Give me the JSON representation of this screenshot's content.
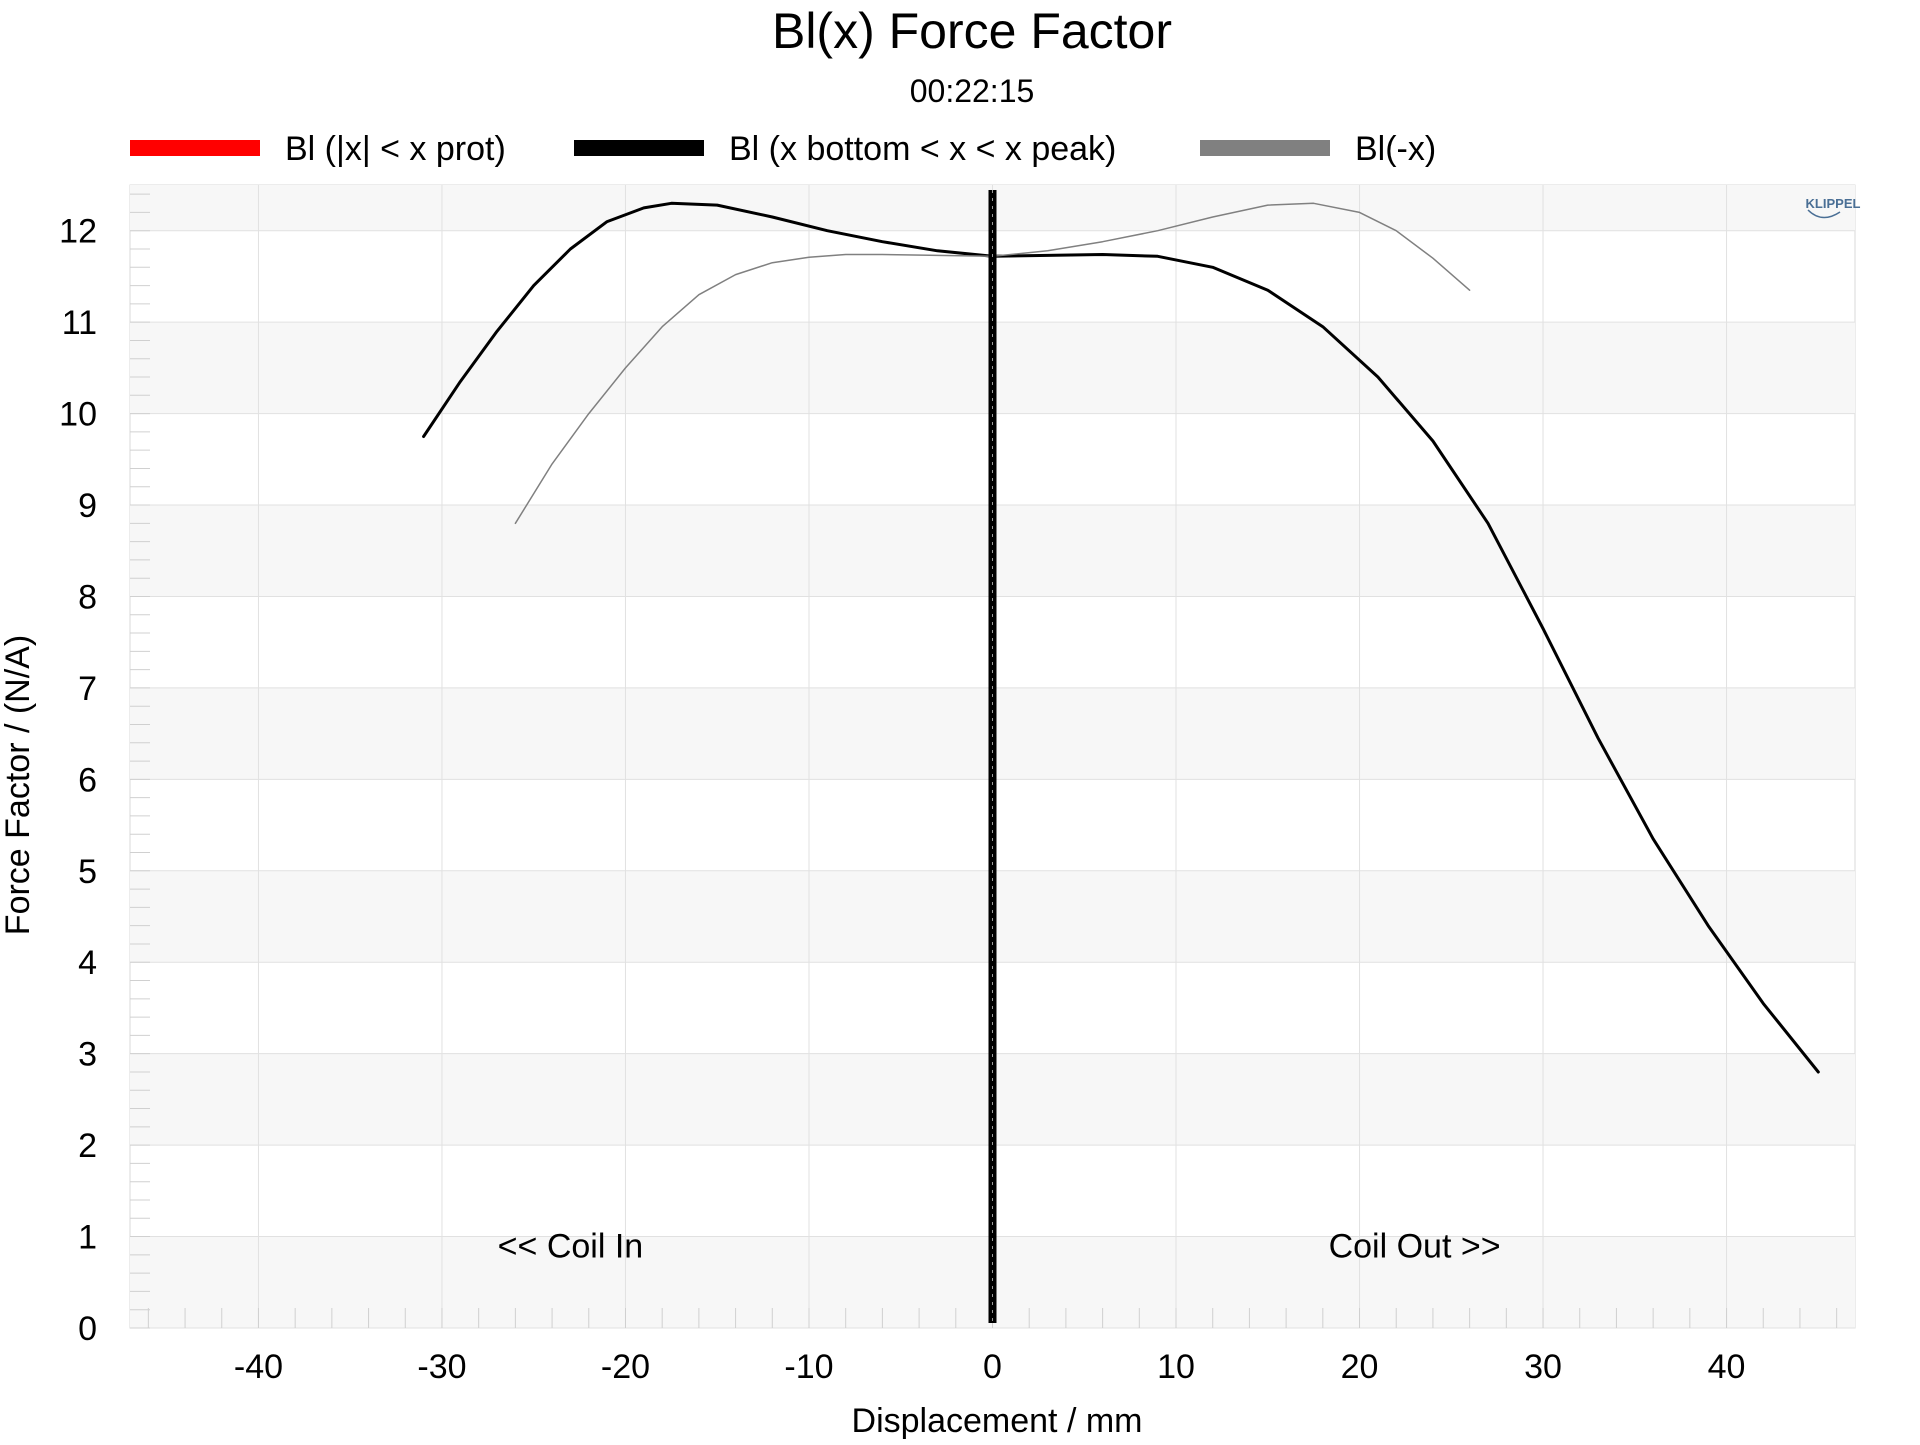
{
  "chart_data": {
    "type": "line",
    "title": "Bl(x) Force Factor",
    "subtitle": "00:22:15",
    "xlabel": "Displacement / mm",
    "ylabel": "Force Factor / (N/A)",
    "xlim": [
      -47,
      47
    ],
    "ylim": [
      0,
      12.5
    ],
    "x_ticks": [
      -40,
      -30,
      -20,
      -10,
      0,
      10,
      20,
      30,
      40
    ],
    "y_ticks": [
      0,
      1,
      2,
      3,
      4,
      5,
      6,
      7,
      8,
      9,
      10,
      11,
      12
    ],
    "grid": true,
    "legend_position": "top",
    "logo_text": "KLIPPEL",
    "annotations": [
      {
        "text": "<< Coil In",
        "x": -23,
        "y": 0.9
      },
      {
        "text": "Coil Out >>",
        "x": 23,
        "y": 0.9
      }
    ],
    "marker_line": {
      "x": 0,
      "color": "#000000"
    },
    "series": [
      {
        "name": "Bl (|x| < x prot)",
        "color": "#ff0000",
        "legend_only": true,
        "points": []
      },
      {
        "name": "Bl (x bottom < x < x peak)",
        "color": "#000000",
        "points": [
          [
            -31,
            9.75
          ],
          [
            -29,
            10.35
          ],
          [
            -27,
            10.9
          ],
          [
            -25,
            11.4
          ],
          [
            -23,
            11.8
          ],
          [
            -21,
            12.1
          ],
          [
            -19,
            12.25
          ],
          [
            -17.5,
            12.3
          ],
          [
            -15,
            12.28
          ],
          [
            -12,
            12.15
          ],
          [
            -9,
            12.0
          ],
          [
            -6,
            11.88
          ],
          [
            -3,
            11.78
          ],
          [
            0,
            11.72
          ],
          [
            3,
            11.73
          ],
          [
            6,
            11.74
          ],
          [
            9,
            11.72
          ],
          [
            12,
            11.6
          ],
          [
            15,
            11.35
          ],
          [
            18,
            10.95
          ],
          [
            21,
            10.4
          ],
          [
            24,
            9.7
          ],
          [
            27,
            8.8
          ],
          [
            30,
            7.65
          ],
          [
            33,
            6.45
          ],
          [
            36,
            5.35
          ],
          [
            39,
            4.4
          ],
          [
            42,
            3.55
          ],
          [
            45,
            2.8
          ]
        ]
      },
      {
        "name": "Bl(-x)",
        "color": "#808080",
        "points": [
          [
            -26,
            8.8
          ],
          [
            -24,
            9.45
          ],
          [
            -22,
            10.0
          ],
          [
            -20,
            10.5
          ],
          [
            -18,
            10.95
          ],
          [
            -16,
            11.3
          ],
          [
            -14,
            11.52
          ],
          [
            -12,
            11.65
          ],
          [
            -10,
            11.71
          ],
          [
            -8,
            11.74
          ],
          [
            -6,
            11.74
          ],
          [
            -3,
            11.73
          ],
          [
            0,
            11.72
          ],
          [
            3,
            11.78
          ],
          [
            6,
            11.88
          ],
          [
            9,
            12.0
          ],
          [
            12,
            12.15
          ],
          [
            15,
            12.28
          ],
          [
            17.5,
            12.3
          ],
          [
            20,
            12.2
          ],
          [
            22,
            12.0
          ],
          [
            24,
            11.7
          ],
          [
            26,
            11.35
          ]
        ]
      }
    ]
  }
}
